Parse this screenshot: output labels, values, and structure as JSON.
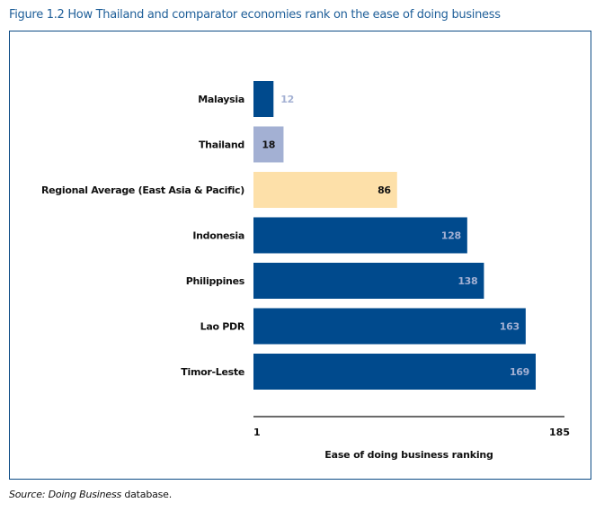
{
  "figure": {
    "title": "Figure 1.2 How Thailand and comparator economies rank on the ease of doing business",
    "source_prefix": "Source: Doing Business",
    "source_suffix": " database."
  },
  "chart_data": {
    "type": "bar",
    "orientation": "horizontal",
    "title": "Figure 1.2 How Thailand and comparator economies rank on the ease of doing business",
    "xlabel": "Ease of doing business ranking",
    "ylabel": "",
    "xlim": [
      1,
      185
    ],
    "x_ticks": [
      "1",
      "185"
    ],
    "grid": false,
    "legend": null,
    "categories": [
      "Malaysia",
      "Thailand",
      "Regional Average (East Asia & Pacific)",
      "Indonesia",
      "Philippines",
      "Lao PDR",
      "Timor-Leste"
    ],
    "values": [
      12,
      18,
      86,
      128,
      138,
      163,
      169
    ],
    "bar_colors": [
      "#004a8d",
      "#a3b0d3",
      "#fde0a9",
      "#004a8d",
      "#004a8d",
      "#004a8d",
      "#004a8d"
    ],
    "label_colors": [
      "#a3b0d3",
      "#111111",
      "#111111",
      "#a3b0d3",
      "#a3b0d3",
      "#a3b0d3",
      "#a3b0d3"
    ],
    "label_positions": [
      "outside",
      "inside",
      "inside",
      "inside",
      "inside",
      "inside",
      "inside"
    ]
  },
  "colors": {
    "title": "#1f5f99",
    "frame": "#0d4c86",
    "primary_bar": "#004a8d",
    "highlight_bar": "#a3b0d3",
    "average_bar": "#fde0a9"
  }
}
